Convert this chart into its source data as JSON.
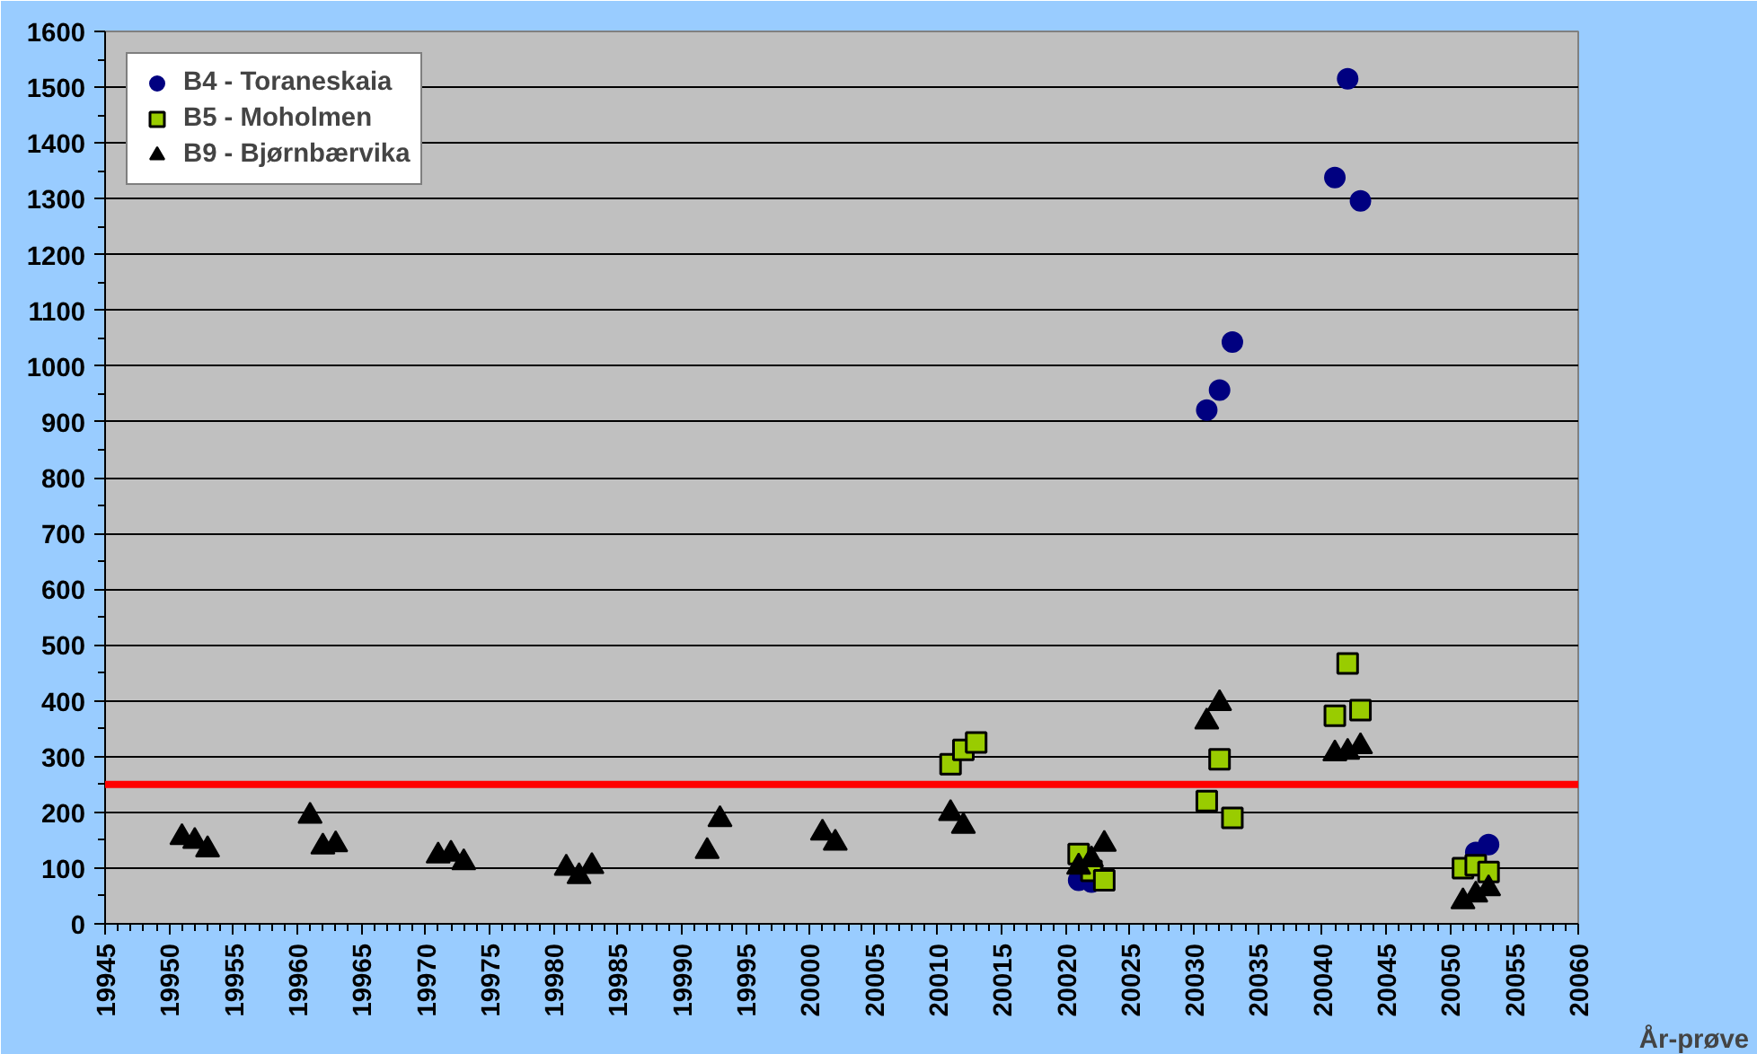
{
  "chart_data": {
    "type": "scatter",
    "xlabel": "År-prøve",
    "xlim": [
      19945,
      20060
    ],
    "xticks": [
      19945,
      19950,
      19955,
      19960,
      19965,
      19970,
      19975,
      19980,
      19985,
      19990,
      19995,
      20000,
      20005,
      20010,
      20015,
      20020,
      20025,
      20030,
      20035,
      20040,
      20045,
      20050,
      20055,
      20060
    ],
    "ylim": [
      0,
      1600
    ],
    "yticks": [
      0,
      100,
      200,
      300,
      400,
      500,
      600,
      700,
      800,
      900,
      1000,
      1100,
      1200,
      1300,
      1400,
      1500,
      1600
    ],
    "grid": "y",
    "legend": "top left",
    "series": [
      {
        "name": "B4 - Toraneskaia",
        "color": "#000080",
        "marker": "circle",
        "x": [
          20021,
          20022,
          20031,
          20032,
          20033,
          20041,
          20042,
          20043,
          20051,
          20052,
          20053
        ],
        "values": [
          78,
          75,
          921,
          957,
          1043,
          1338,
          1515,
          1296,
          null,
          128,
          142
        ]
      },
      {
        "name": "B5 - Moholmen",
        "color": "#99cc00",
        "marker": "square",
        "x": [
          20011,
          20012,
          20013,
          20021,
          20022,
          20023,
          20031,
          20032,
          20033,
          20041,
          20042,
          20043,
          20051,
          20052,
          20053
        ],
        "values": [
          286,
          312,
          325,
          125,
          95,
          78,
          220,
          295,
          190,
          373,
          467,
          383,
          100,
          105,
          93
        ]
      },
      {
        "name": "B9 - Bjørnbærvika",
        "color": "#000000",
        "marker": "triangle",
        "x": [
          19951,
          19952,
          19953,
          19961,
          19962,
          19963,
          19971,
          19972,
          19973,
          19981,
          19982,
          19983,
          19992,
          19993,
          20001,
          20002,
          20011,
          20012,
          20021,
          20022,
          20023,
          20031,
          20032,
          20041,
          20042,
          20043,
          20051,
          20052,
          20053
        ],
        "values": [
          155,
          148,
          133,
          193,
          138,
          142,
          122,
          125,
          110,
          100,
          85,
          103,
          130,
          187,
          163,
          145,
          198,
          175,
          102,
          115,
          143,
          362,
          395,
          305,
          308,
          318,
          40,
          52,
          63
        ]
      }
    ],
    "ref_lines": [
      {
        "axis": "y",
        "value": 250,
        "color": "#ff0000"
      }
    ]
  }
}
